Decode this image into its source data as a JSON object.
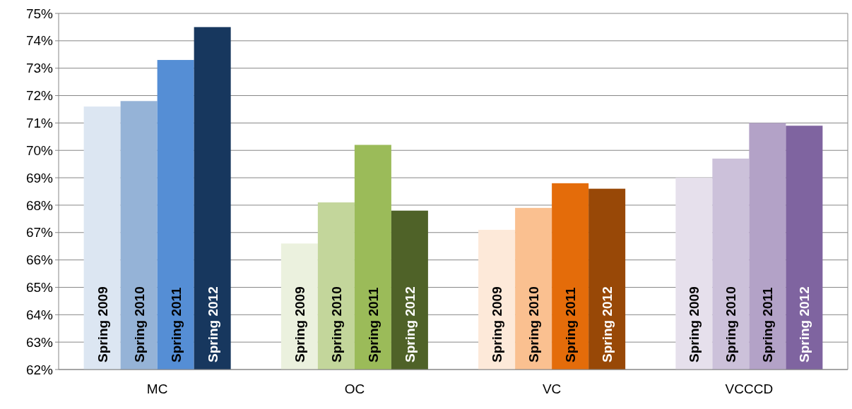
{
  "chart_data": {
    "type": "bar",
    "categories": [
      "MC",
      "OC",
      "VC",
      "VCCCD"
    ],
    "series": [
      {
        "name": "Spring 2009",
        "values": [
          71.6,
          66.6,
          67.1,
          69.0
        ],
        "colors": [
          "#dce6f2",
          "#ebf1de",
          "#fde9d9",
          "#e6e0ec"
        ]
      },
      {
        "name": "Spring 2010",
        "values": [
          71.8,
          68.1,
          67.9,
          69.7
        ],
        "colors": [
          "#95b3d7",
          "#c3d69b",
          "#fac090",
          "#ccc1da"
        ]
      },
      {
        "name": "Spring 2011",
        "values": [
          73.3,
          70.2,
          68.8,
          71.0
        ],
        "colors": [
          "#558ed5",
          "#9bbb59",
          "#e46c0a",
          "#b3a2c7"
        ]
      },
      {
        "name": "Spring 2012",
        "values": [
          74.5,
          67.8,
          68.6,
          70.9
        ],
        "colors": [
          "#17375e",
          "#4f6228",
          "#984807",
          "#7f64a0"
        ]
      }
    ],
    "ylim": [
      62,
      75
    ],
    "yticks": [
      {
        "value": 62,
        "label": "62%"
      },
      {
        "value": 63,
        "label": "63%"
      },
      {
        "value": 64,
        "label": "64%"
      },
      {
        "value": 65,
        "label": "65%"
      },
      {
        "value": 66,
        "label": "66%"
      },
      {
        "value": 67,
        "label": "67%"
      },
      {
        "value": 68,
        "label": "68%"
      },
      {
        "value": 69,
        "label": "69%"
      },
      {
        "value": 70,
        "label": "70%"
      },
      {
        "value": 71,
        "label": "71%"
      },
      {
        "value": 72,
        "label": "72%"
      },
      {
        "value": 73,
        "label": "73%"
      },
      {
        "value": 74,
        "label": "74%"
      },
      {
        "value": 75,
        "label": "75%"
      }
    ],
    "grid": "y"
  }
}
